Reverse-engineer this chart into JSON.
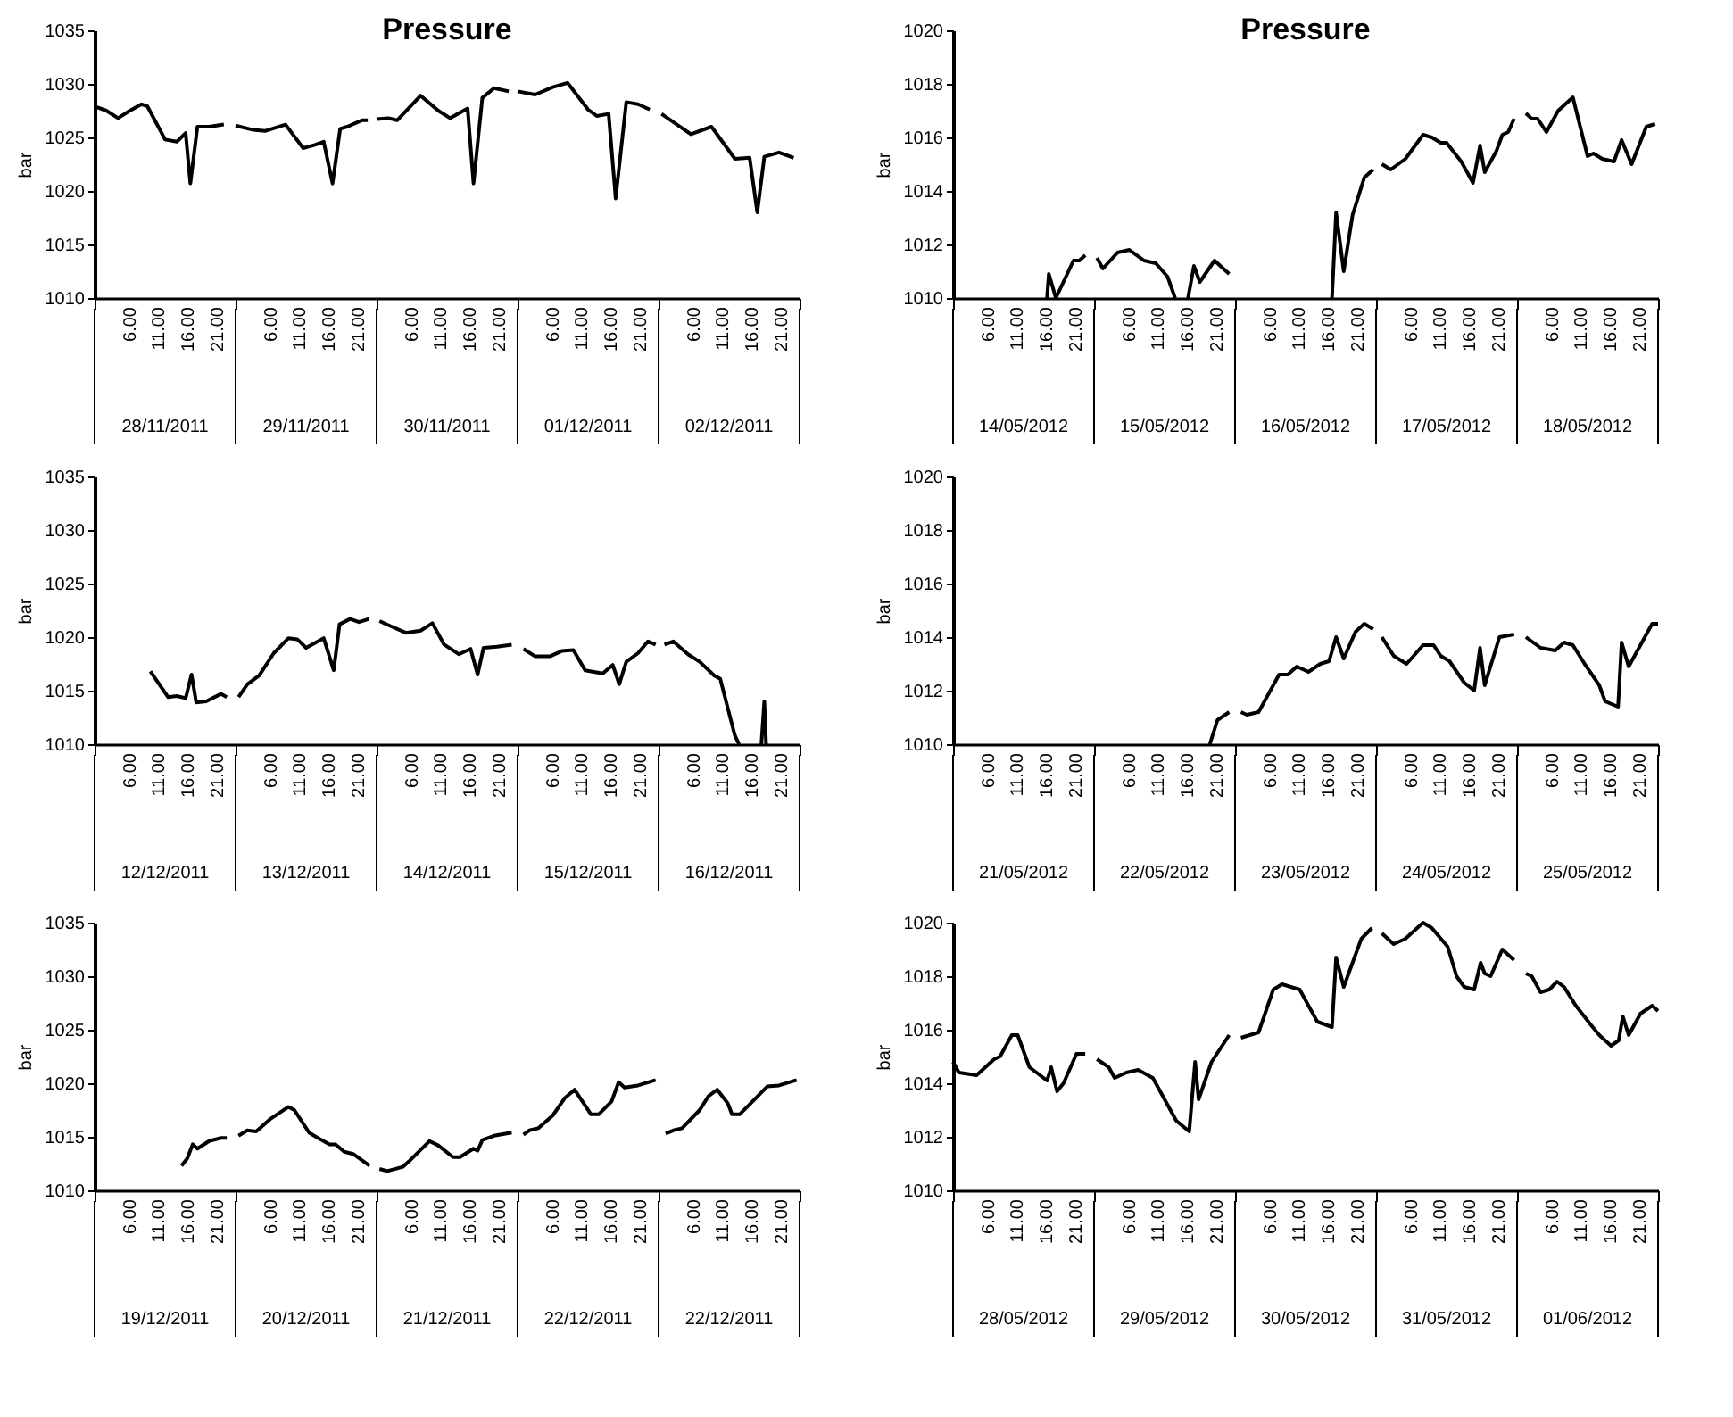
{
  "chart_data": [
    {
      "type": "line",
      "title": "Pressure",
      "ylabel": "bar",
      "annotations": [
        "28/11/2011",
        "29/11/2011",
        "30/11/2011",
        "01/12/2011",
        "02/12/2011"
      ],
      "xlim": [
        "2011-11-28T00:00",
        "2011-12-03T00:00"
      ],
      "ylim": [
        1010,
        1035
      ],
      "yticks": [
        1010,
        1015,
        1020,
        1025,
        1030,
        1035
      ],
      "grid": false,
      "line_style": "solid",
      "marker": "none",
      "xticks": [
        {
          "value": "2011-11-28T00:00",
          "label": null
        },
        {
          "value": "2011-11-28T06:00",
          "label": "6.00"
        },
        {
          "value": "2011-11-28T11:00",
          "label": "11.00"
        },
        {
          "value": "2011-11-28T16:00",
          "label": "16.00"
        },
        {
          "value": "2011-11-28T21:00",
          "label": "21.00"
        },
        {
          "value": "2011-11-29T00:00",
          "label": null
        },
        {
          "value": "2011-11-29T06:00",
          "label": "6.00"
        },
        {
          "value": "2011-11-29T11:00",
          "label": "11.00"
        },
        {
          "value": "2011-11-29T16:00",
          "label": "16.00"
        },
        {
          "value": "2011-11-29T21:00",
          "label": "21.00"
        },
        {
          "value": "2011-11-30T00:00",
          "label": null
        },
        {
          "value": "2011-11-30T06:00",
          "label": "6.00"
        },
        {
          "value": "2011-11-30T11:00",
          "label": "11.00"
        },
        {
          "value": "2011-11-30T16:00",
          "label": "16.00"
        },
        {
          "value": "2011-11-30T21:00",
          "label": "21.00"
        },
        {
          "value": "2011-12-01T00:00",
          "label": null
        },
        {
          "value": "2011-12-01T06:00",
          "label": "6.00"
        },
        {
          "value": "2011-12-01T11:00",
          "label": "11.00"
        },
        {
          "value": "2011-12-01T16:00",
          "label": "16.00"
        },
        {
          "value": "2011-12-01T21:00",
          "label": "21.00"
        },
        {
          "value": "2011-12-02T00:00",
          "label": null
        },
        {
          "value": "2011-12-02T06:00",
          "label": "6.00"
        },
        {
          "value": "2011-12-02T11:00",
          "label": "11.00"
        },
        {
          "value": "2011-12-02T16:00",
          "label": "16.00"
        },
        {
          "value": "2011-12-02T21:00",
          "label": "21.00"
        },
        {
          "value": "2011-12-03T00:00",
          "label": null
        }
      ],
      "series": [
        {
          "color": "#000000",
          "x": [
            "2011-11-28T00:00",
            "2011-11-28T02:00",
            "2011-11-28T04:00",
            "2011-11-28T06:00",
            "2011-11-28T08:00",
            "2011-11-28T09:00",
            "2011-11-28T12:00",
            "2011-11-28T14:00",
            "2011-11-28T15:30",
            "2011-11-28T16:18",
            "2011-11-28T17:30",
            "2011-11-28T19:30",
            "2011-11-28T22:00",
            "2011-11-28T23:00",
            "2011-11-29T00:00",
            "2011-11-29T03:00",
            "2011-11-29T05:00",
            "2011-11-29T08:30",
            "2011-11-29T11:30",
            "2011-11-29T13:30",
            "2011-11-29T15:00",
            "2011-11-29T16:30",
            "2011-11-29T17:48",
            "2011-11-29T19:00",
            "2011-11-29T21:30",
            "2011-11-29T22:30",
            "2011-11-29T23:18",
            "2011-11-30T00:00",
            "2011-11-30T02:00",
            "2011-11-30T03:30",
            "2011-11-30T07:30",
            "2011-11-30T10:30",
            "2011-11-30T12:30",
            "2011-11-30T15:30",
            "2011-11-30T16:30",
            "2011-11-30T18:00",
            "2011-11-30T20:00",
            "2011-11-30T22:30",
            "2011-11-30T23:18",
            "2011-12-01T00:00",
            "2011-12-01T03:00",
            "2011-12-01T06:00",
            "2011-12-01T08:30",
            "2011-12-01T12:00",
            "2011-12-01T13:30",
            "2011-12-01T15:30",
            "2011-12-01T16:42",
            "2011-12-01T18:30",
            "2011-12-01T20:30",
            "2011-12-01T22:30",
            "2011-12-01T23:30",
            "2011-12-02T00:30",
            "2011-12-02T05:30",
            "2011-12-02T09:00",
            "2011-12-02T13:00",
            "2011-12-02T15:30",
            "2011-12-02T16:48",
            "2011-12-02T18:00",
            "2011-12-02T20:30",
            "2011-12-02T23:00"
          ],
          "values": [
            1027.9,
            1027.5,
            1026.8,
            1027.5,
            1028.1,
            1027.9,
            1024.8,
            1024.6,
            1025.4,
            1020.7,
            1026.0,
            1026.0,
            1026.2,
            null,
            1026.1,
            1025.7,
            1025.6,
            1026.2,
            1024.0,
            1024.3,
            1024.6,
            1020.7,
            1025.8,
            1026.0,
            1026.6,
            1026.6,
            null,
            1026.7,
            1026.8,
            1026.6,
            1028.9,
            1027.5,
            1026.8,
            1027.7,
            1020.7,
            1028.7,
            1029.6,
            1029.3,
            null,
            1029.3,
            1029.0,
            1029.7,
            1030.1,
            1027.6,
            1027.0,
            1027.2,
            1019.3,
            1028.3,
            1028.1,
            1027.6,
            null,
            1027.2,
            1025.3,
            1026.0,
            1023.0,
            1023.1,
            1018.0,
            1023.2,
            1023.6,
            1023.1
          ]
        }
      ]
    },
    {
      "type": "line",
      "title": "Pressure",
      "ylabel": "bar",
      "annotations": [
        "14/05/2012",
        "15/05/2012",
        "16/05/2012",
        "17/05/2012",
        "18/05/2012"
      ],
      "xlim": [
        "2012-05-14T00:00",
        "2012-05-19T00:00"
      ],
      "ylim": [
        1010,
        1020
      ],
      "yticks": [
        1010,
        1012,
        1014,
        1016,
        1018,
        1020
      ],
      "grid": false,
      "line_style": "solid",
      "marker": "none",
      "xticks": [
        {
          "value": "2012-05-14T00:00",
          "label": null
        },
        {
          "value": "2012-05-14T06:00",
          "label": "6.00"
        },
        {
          "value": "2012-05-14T11:00",
          "label": "11.00"
        },
        {
          "value": "2012-05-14T16:00",
          "label": "16.00"
        },
        {
          "value": "2012-05-14T21:00",
          "label": "21.00"
        },
        {
          "value": "2012-05-15T00:00",
          "label": null
        },
        {
          "value": "2012-05-15T06:00",
          "label": "6.00"
        },
        {
          "value": "2012-05-15T11:00",
          "label": "11.00"
        },
        {
          "value": "2012-05-15T16:00",
          "label": "16.00"
        },
        {
          "value": "2012-05-15T21:00",
          "label": "21.00"
        },
        {
          "value": "2012-05-16T00:00",
          "label": null
        },
        {
          "value": "2012-05-16T06:00",
          "label": "6.00"
        },
        {
          "value": "2012-05-16T11:00",
          "label": "11.00"
        },
        {
          "value": "2012-05-16T16:00",
          "label": "16.00"
        },
        {
          "value": "2012-05-16T21:00",
          "label": "21.00"
        },
        {
          "value": "2012-05-17T00:00",
          "label": null
        },
        {
          "value": "2012-05-17T06:00",
          "label": "6.00"
        },
        {
          "value": "2012-05-17T11:00",
          "label": "11.00"
        },
        {
          "value": "2012-05-17T16:00",
          "label": "16.00"
        },
        {
          "value": "2012-05-17T21:00",
          "label": "21.00"
        },
        {
          "value": "2012-05-18T00:00",
          "label": null
        },
        {
          "value": "2012-05-18T06:00",
          "label": "6.00"
        },
        {
          "value": "2012-05-18T11:00",
          "label": "11.00"
        },
        {
          "value": "2012-05-18T16:00",
          "label": "16.00"
        },
        {
          "value": "2012-05-18T21:00",
          "label": "21.00"
        },
        {
          "value": "2012-05-19T00:00",
          "label": null
        }
      ],
      "series": [
        {
          "color": "#000000",
          "x": [
            "2012-05-14T16:00",
            "2012-05-14T16:18",
            "2012-05-14T17:30",
            "2012-05-14T19:00",
            "2012-05-14T20:30",
            "2012-05-14T21:30",
            "2012-05-14T22:30",
            "2012-05-14T23:30",
            "2012-05-15T00:30",
            "2012-05-15T01:30",
            "2012-05-15T04:00",
            "2012-05-15T06:00",
            "2012-05-15T08:30",
            "2012-05-15T10:30",
            "2012-05-15T12:30",
            "2012-05-15T13:48",
            "2012-05-15T14:54",
            "2012-05-15T16:00",
            "2012-05-15T17:00",
            "2012-05-15T18:00",
            "2012-05-15T20:30",
            "2012-05-15T23:00",
            "2012-05-16T00:00",
            "2012-05-16T16:30",
            "2012-05-16T17:12",
            "2012-05-16T18:30",
            "2012-05-16T20:00",
            "2012-05-16T22:00",
            "2012-05-16T23:30",
            "2012-05-17T00:12",
            "2012-05-17T01:00",
            "2012-05-17T02:30",
            "2012-05-17T05:00",
            "2012-05-17T08:00",
            "2012-05-17T09:30",
            "2012-05-17T11:00",
            "2012-05-17T12:00",
            "2012-05-17T14:30",
            "2012-05-17T16:30",
            "2012-05-17T17:42",
            "2012-05-17T18:30",
            "2012-05-17T20:30",
            "2012-05-17T21:30",
            "2012-05-17T22:30",
            "2012-05-17T23:30",
            "2012-05-18T00:30",
            "2012-05-18T01:30",
            "2012-05-18T02:30",
            "2012-05-18T03:30",
            "2012-05-18T05:00",
            "2012-05-18T07:00",
            "2012-05-18T09:30",
            "2012-05-18T12:00",
            "2012-05-18T13:00",
            "2012-05-18T14:30",
            "2012-05-18T16:30",
            "2012-05-18T17:48",
            "2012-05-18T19:30",
            "2012-05-18T22:00",
            "2012-05-18T23:30"
          ],
          "values": [
            1010,
            1010.9,
            1010,
            1010.7,
            1011.4,
            1011.4,
            1011.6,
            null,
            1011.5,
            1011.1,
            1011.7,
            1011.8,
            1011.4,
            1011.3,
            1010.8,
            1010,
            null,
            1010,
            1011.2,
            1010.6,
            1011.4,
            1010.9,
            null,
            1010,
            1013.2,
            1011.0,
            1013.1,
            1014.5,
            1014.8,
            null,
            1015.0,
            1014.8,
            1015.2,
            1016.1,
            1016.0,
            1015.8,
            1015.8,
            1015.1,
            1014.3,
            1015.7,
            1014.7,
            1015.5,
            1016.1,
            1016.2,
            1016.7,
            null,
            1016.9,
            1016.7,
            1016.7,
            1016.2,
            1017.0,
            1017.5,
            1015.3,
            1015.4,
            1015.2,
            1015.1,
            1015.9,
            1015.0,
            1016.4,
            1016.5
          ]
        }
      ]
    },
    {
      "type": "line",
      "ylabel": "bar",
      "annotations": [
        "12/12/2011",
        "13/12/2011",
        "14/12/2011",
        "15/12/2011",
        "16/12/2011"
      ],
      "xlim": [
        "2011-12-12T00:00",
        "2011-12-17T00:00"
      ],
      "ylim": [
        1010,
        1035
      ],
      "yticks": [
        1010,
        1015,
        1020,
        1025,
        1030,
        1035
      ],
      "grid": false,
      "line_style": "solid",
      "marker": "none",
      "xticks": [
        {
          "value": "2011-12-12T00:00",
          "label": null
        },
        {
          "value": "2011-12-12T06:00",
          "label": "6.00"
        },
        {
          "value": "2011-12-12T11:00",
          "label": "11.00"
        },
        {
          "value": "2011-12-12T16:00",
          "label": "16.00"
        },
        {
          "value": "2011-12-12T21:00",
          "label": "21.00"
        },
        {
          "value": "2011-12-13T00:00",
          "label": null
        },
        {
          "value": "2011-12-13T06:00",
          "label": "6.00"
        },
        {
          "value": "2011-12-13T11:00",
          "label": "11.00"
        },
        {
          "value": "2011-12-13T16:00",
          "label": "16.00"
        },
        {
          "value": "2011-12-13T21:00",
          "label": "21.00"
        },
        {
          "value": "2011-12-14T00:00",
          "label": null
        },
        {
          "value": "2011-12-14T06:00",
          "label": "6.00"
        },
        {
          "value": "2011-12-14T11:00",
          "label": "11.00"
        },
        {
          "value": "2011-12-14T16:00",
          "label": "16.00"
        },
        {
          "value": "2011-12-14T21:00",
          "label": "21.00"
        },
        {
          "value": "2011-12-15T00:00",
          "label": null
        },
        {
          "value": "2011-12-15T06:00",
          "label": "6.00"
        },
        {
          "value": "2011-12-15T11:00",
          "label": "11.00"
        },
        {
          "value": "2011-12-15T16:00",
          "label": "16.00"
        },
        {
          "value": "2011-12-15T21:00",
          "label": "21.00"
        },
        {
          "value": "2011-12-16T00:00",
          "label": null
        },
        {
          "value": "2011-12-16T06:00",
          "label": "6.00"
        },
        {
          "value": "2011-12-16T11:00",
          "label": "11.00"
        },
        {
          "value": "2011-12-16T16:00",
          "label": "16.00"
        },
        {
          "value": "2011-12-16T21:00",
          "label": "21.00"
        },
        {
          "value": "2011-12-17T00:00",
          "label": null
        }
      ],
      "series": [
        {
          "color": "#000000",
          "x": [
            "2011-12-12T09:30",
            "2011-12-12T12:30",
            "2011-12-12T14:00",
            "2011-12-12T15:30",
            "2011-12-12T16:30",
            "2011-12-12T17:18",
            "2011-12-12T19:00",
            "2011-12-12T21:30",
            "2011-12-12T22:30",
            "2011-12-12T23:30",
            "2011-12-13T00:30",
            "2011-12-13T02:00",
            "2011-12-13T04:00",
            "2011-12-13T06:30",
            "2011-12-13T09:00",
            "2011-12-13T10:30",
            "2011-12-13T12:00",
            "2011-12-13T15:00",
            "2011-12-13T16:42",
            "2011-12-13T17:42",
            "2011-12-13T19:30",
            "2011-12-13T21:00",
            "2011-12-13T22:42",
            "2011-12-13T23:36",
            "2011-12-14T00:30",
            "2011-12-14T02:30",
            "2011-12-14T05:00",
            "2011-12-14T07:30",
            "2011-12-14T09:30",
            "2011-12-14T11:30",
            "2011-12-14T14:00",
            "2011-12-14T16:00",
            "2011-12-14T17:12",
            "2011-12-14T18:12",
            "2011-12-14T20:30",
            "2011-12-14T23:00",
            "2011-12-15T00:00",
            "2011-12-15T01:00",
            "2011-12-15T03:00",
            "2011-12-15T05:30",
            "2011-12-15T07:30",
            "2011-12-15T09:30",
            "2011-12-15T11:30",
            "2011-12-15T14:30",
            "2011-12-15T16:12",
            "2011-12-15T17:18",
            "2011-12-15T18:30",
            "2011-12-15T20:30",
            "2011-12-15T22:12",
            "2011-12-15T23:30",
            "2011-12-16T00:12",
            "2011-12-16T01:00",
            "2011-12-16T02:30",
            "2011-12-16T05:00",
            "2011-12-16T07:00",
            "2011-12-16T09:30",
            "2011-12-16T10:30",
            "2011-12-16T12:00",
            "2011-12-16T13:00",
            "2011-12-16T13:42",
            "2011-12-16T15:30",
            "2011-12-16T17:30",
            "2011-12-16T18:00",
            "2011-12-16T18:18"
          ],
          "values": [
            1016.8,
            1014.4,
            1014.5,
            1014.3,
            1016.5,
            1013.9,
            1014.0,
            1014.7,
            1014.4,
            null,
            1014.4,
            1015.6,
            1016.4,
            1018.5,
            1019.9,
            1019.8,
            1019.0,
            1019.9,
            1016.9,
            1021.2,
            1021.7,
            1021.4,
            1021.7,
            null,
            1021.5,
            1021.0,
            1020.4,
            1020.6,
            1021.3,
            1019.3,
            1018.4,
            1018.9,
            1016.5,
            1019.0,
            1019.1,
            1019.3,
            null,
            1018.9,
            1018.2,
            1018.2,
            1018.7,
            1018.8,
            1016.9,
            1016.6,
            1017.4,
            1015.6,
            1017.7,
            1018.5,
            1019.6,
            1019.3,
            null,
            1019.3,
            1019.6,
            1018.4,
            1017.7,
            1016.4,
            1016.1,
            1012.9,
            1010.8,
            1010,
            null,
            1010,
            1014.0,
            1010
          ]
        }
      ]
    },
    {
      "type": "line",
      "ylabel": "bar",
      "annotations": [
        "21/05/2012",
        "22/05/2012",
        "23/05/2012",
        "24/05/2012",
        "25/05/2012"
      ],
      "xlim": [
        "2012-05-21T00:00",
        "2012-05-26T00:00"
      ],
      "ylim": [
        1010,
        1020
      ],
      "yticks": [
        1010,
        1012,
        1014,
        1016,
        1018,
        1020
      ],
      "grid": false,
      "line_style": "solid",
      "marker": "none",
      "xticks": [
        {
          "value": "2012-05-21T00:00",
          "label": null
        },
        {
          "value": "2012-05-21T06:00",
          "label": "6.00"
        },
        {
          "value": "2012-05-21T11:00",
          "label": "11.00"
        },
        {
          "value": "2012-05-21T16:00",
          "label": "16.00"
        },
        {
          "value": "2012-05-21T21:00",
          "label": "21.00"
        },
        {
          "value": "2012-05-22T00:00",
          "label": null
        },
        {
          "value": "2012-05-22T06:00",
          "label": "6.00"
        },
        {
          "value": "2012-05-22T11:00",
          "label": "11.00"
        },
        {
          "value": "2012-05-22T16:00",
          "label": "16.00"
        },
        {
          "value": "2012-05-22T21:00",
          "label": "21.00"
        },
        {
          "value": "2012-05-23T00:00",
          "label": null
        },
        {
          "value": "2012-05-23T06:00",
          "label": "6.00"
        },
        {
          "value": "2012-05-23T11:00",
          "label": "11.00"
        },
        {
          "value": "2012-05-23T16:00",
          "label": "16.00"
        },
        {
          "value": "2012-05-23T21:00",
          "label": "21.00"
        },
        {
          "value": "2012-05-24T00:00",
          "label": null
        },
        {
          "value": "2012-05-24T06:00",
          "label": "6.00"
        },
        {
          "value": "2012-05-24T11:00",
          "label": "11.00"
        },
        {
          "value": "2012-05-24T16:00",
          "label": "16.00"
        },
        {
          "value": "2012-05-24T21:00",
          "label": "21.00"
        },
        {
          "value": "2012-05-25T00:00",
          "label": null
        },
        {
          "value": "2012-05-25T06:00",
          "label": "6.00"
        },
        {
          "value": "2012-05-25T11:00",
          "label": "11.00"
        },
        {
          "value": "2012-05-25T16:00",
          "label": "16.00"
        },
        {
          "value": "2012-05-25T21:00",
          "label": "21.00"
        },
        {
          "value": "2012-05-26T00:00",
          "label": null
        }
      ],
      "series": [
        {
          "color": "#000000",
          "x": [
            "2012-05-22T19:42",
            "2012-05-22T21:00",
            "2012-05-22T23:00",
            "2012-05-23T00:00",
            "2012-05-23T01:00",
            "2012-05-23T02:00",
            "2012-05-23T04:00",
            "2012-05-23T06:00",
            "2012-05-23T07:30",
            "2012-05-23T09:00",
            "2012-05-23T10:30",
            "2012-05-23T12:30",
            "2012-05-23T14:30",
            "2012-05-23T16:00",
            "2012-05-23T17:12",
            "2012-05-23T18:30",
            "2012-05-23T20:30",
            "2012-05-23T22:00",
            "2012-05-23T23:30",
            "2012-05-24T00:12",
            "2012-05-24T01:00",
            "2012-05-24T03:00",
            "2012-05-24T05:12",
            "2012-05-24T08:00",
            "2012-05-24T09:48",
            "2012-05-24T11:00",
            "2012-05-24T12:30",
            "2012-05-24T15:00",
            "2012-05-24T16:42",
            "2012-05-24T17:42",
            "2012-05-24T18:30",
            "2012-05-24T21:00",
            "2012-05-24T23:30",
            "2012-05-25T00:30",
            "2012-05-25T01:30",
            "2012-05-25T04:00",
            "2012-05-25T06:30",
            "2012-05-25T08:00",
            "2012-05-25T09:30",
            "2012-05-25T11:30",
            "2012-05-25T14:00",
            "2012-05-25T15:00",
            "2012-05-25T17:12",
            "2012-05-25T17:48",
            "2012-05-25T19:00",
            "2012-05-25T21:00",
            "2012-05-25T23:00",
            "2012-05-26T00:00"
          ],
          "values": [
            1010,
            1010.9,
            1011.2,
            null,
            1011.2,
            1011.1,
            1011.2,
            1012.0,
            1012.6,
            1012.6,
            1012.9,
            1012.7,
            1013.0,
            1013.1,
            1014.0,
            1013.2,
            1014.2,
            1014.5,
            1014.3,
            null,
            1014.0,
            1013.3,
            1013.0,
            1013.7,
            1013.7,
            1013.3,
            1013.1,
            1012.3,
            1012.0,
            1013.6,
            1012.2,
            1014.0,
            1014.1,
            null,
            1014.0,
            1013.6,
            1013.5,
            1013.8,
            1013.7,
            1013.0,
            1012.2,
            1011.6,
            1011.4,
            1013.8,
            1012.9,
            1013.7,
            1014.5,
            1014.5
          ]
        }
      ]
    },
    {
      "type": "line",
      "ylabel": "bar",
      "annotations": [
        "19/12/2011",
        "20/12/2011",
        "21/12/2011",
        "22/12/2011",
        "22/12/2011"
      ],
      "xlim": [
        "2011-12-19T00:00",
        "2011-12-24T00:00"
      ],
      "ylim": [
        1010,
        1035
      ],
      "yticks": [
        1010,
        1015,
        1020,
        1025,
        1030,
        1035
      ],
      "grid": false,
      "line_style": "solid",
      "marker": "none",
      "xticks": [
        {
          "value": "2011-12-19T00:00",
          "label": null
        },
        {
          "value": "2011-12-19T06:00",
          "label": "6.00"
        },
        {
          "value": "2011-12-19T11:00",
          "label": "11.00"
        },
        {
          "value": "2011-12-19T16:00",
          "label": "16.00"
        },
        {
          "value": "2011-12-19T21:00",
          "label": "21.00"
        },
        {
          "value": "2011-12-20T00:00",
          "label": null
        },
        {
          "value": "2011-12-20T06:00",
          "label": "6.00"
        },
        {
          "value": "2011-12-20T11:00",
          "label": "11.00"
        },
        {
          "value": "2011-12-20T16:00",
          "label": "16.00"
        },
        {
          "value": "2011-12-20T21:00",
          "label": "21.00"
        },
        {
          "value": "2011-12-21T00:00",
          "label": null
        },
        {
          "value": "2011-12-21T06:00",
          "label": "6.00"
        },
        {
          "value": "2011-12-21T11:00",
          "label": "11.00"
        },
        {
          "value": "2011-12-21T16:00",
          "label": "16.00"
        },
        {
          "value": "2011-12-21T21:00",
          "label": "21.00"
        },
        {
          "value": "2011-12-22T00:00",
          "label": null
        },
        {
          "value": "2011-12-22T06:00",
          "label": "6.00"
        },
        {
          "value": "2011-12-22T11:00",
          "label": "11.00"
        },
        {
          "value": "2011-12-22T16:00",
          "label": "16.00"
        },
        {
          "value": "2011-12-22T21:00",
          "label": "21.00"
        },
        {
          "value": "2011-12-23T00:00",
          "label": null
        },
        {
          "value": "2011-12-23T06:00",
          "label": "6.00"
        },
        {
          "value": "2011-12-23T11:00",
          "label": "11.00"
        },
        {
          "value": "2011-12-23T16:00",
          "label": "16.00"
        },
        {
          "value": "2011-12-23T21:00",
          "label": "21.00"
        },
        {
          "value": "2011-12-24T00:00",
          "label": null
        }
      ],
      "series": [
        {
          "color": "#000000",
          "x": [
            "2011-12-19T14:48",
            "2011-12-19T15:48",
            "2011-12-19T16:42",
            "2011-12-19T17:30",
            "2011-12-19T19:30",
            "2011-12-19T21:30",
            "2011-12-19T22:30",
            "2011-12-19T23:30",
            "2011-12-20T00:30",
            "2011-12-20T02:00",
            "2011-12-20T03:30",
            "2011-12-20T06:00",
            "2011-12-20T09:00",
            "2011-12-20T10:00",
            "2011-12-20T12:30",
            "2011-12-20T14:00",
            "2011-12-20T16:00",
            "2011-12-20T17:00",
            "2011-12-20T18:30",
            "2011-12-20T20:00",
            "2011-12-20T22:48",
            "2011-12-20T23:36",
            "2011-12-21T00:30",
            "2011-12-21T01:48",
            "2011-12-21T04:30",
            "2011-12-21T05:30",
            "2011-12-21T09:00",
            "2011-12-21T10:30",
            "2011-12-21T13:00",
            "2011-12-21T14:12",
            "2011-12-21T16:30",
            "2011-12-21T17:12",
            "2011-12-21T18:00",
            "2011-12-21T20:00",
            "2011-12-21T23:00",
            "2011-12-22T00:00",
            "2011-12-22T01:00",
            "2011-12-22T02:00",
            "2011-12-22T03:30",
            "2011-12-22T06:00",
            "2011-12-22T08:00",
            "2011-12-22T09:42",
            "2011-12-22T12:30",
            "2011-12-22T13:48",
            "2011-12-22T16:00",
            "2011-12-22T17:12",
            "2011-12-22T18:12",
            "2011-12-22T20:30",
            "2011-12-22T23:30",
            "2011-12-23T00:24",
            "2011-12-23T01:12",
            "2011-12-23T02:30",
            "2011-12-23T04:00",
            "2011-12-23T07:00",
            "2011-12-23T08:30",
            "2011-12-23T10:00",
            "2011-12-23T11:48",
            "2011-12-23T12:30",
            "2011-12-23T13:48",
            "2011-12-23T16:00",
            "2011-12-23T18:30",
            "2011-12-23T20:30",
            "2011-12-23T23:30"
          ],
          "values": [
            1012.3,
            1013.0,
            1014.3,
            1013.9,
            1014.6,
            1014.9,
            1014.9,
            null,
            1015.1,
            1015.6,
            1015.5,
            1016.7,
            1017.8,
            1017.5,
            1015.4,
            1014.9,
            1014.3,
            1014.3,
            1013.6,
            1013.4,
            1012.3,
            null,
            1012.0,
            1011.8,
            1012.2,
            1012.7,
            1014.6,
            1014.2,
            1013.1,
            1013.1,
            1013.9,
            1013.7,
            1014.7,
            1015.1,
            1015.4,
            null,
            1015.2,
            1015.6,
            1015.8,
            1017.0,
            1018.6,
            1019.4,
            1017.1,
            1017.1,
            1018.3,
            1020.1,
            1019.6,
            1019.8,
            1020.3,
            null,
            1015.3,
            1015.6,
            1015.8,
            1017.5,
            1018.8,
            1019.4,
            1018.1,
            1017.1,
            1017.1,
            1018.3,
            1019.7,
            1019.8,
            1020.3
          ]
        }
      ]
    },
    {
      "type": "line",
      "ylabel": "bar",
      "annotations": [
        "28/05/2012",
        "29/05/2012",
        "30/05/2012",
        "31/05/2012",
        "01/06/2012"
      ],
      "xlim": [
        "2012-05-28T00:00",
        "2012-06-02T00:00"
      ],
      "ylim": [
        1010,
        1020
      ],
      "yticks": [
        1010,
        1012,
        1014,
        1016,
        1018,
        1020
      ],
      "grid": false,
      "line_style": "solid",
      "marker": "none",
      "xticks": [
        {
          "value": "2012-05-28T00:00",
          "label": null
        },
        {
          "value": "2012-05-28T06:00",
          "label": "6.00"
        },
        {
          "value": "2012-05-28T11:00",
          "label": "11.00"
        },
        {
          "value": "2012-05-28T16:00",
          "label": "16.00"
        },
        {
          "value": "2012-05-28T21:00",
          "label": "21.00"
        },
        {
          "value": "2012-05-29T00:00",
          "label": null
        },
        {
          "value": "2012-05-29T06:00",
          "label": "6.00"
        },
        {
          "value": "2012-05-29T11:00",
          "label": "11.00"
        },
        {
          "value": "2012-05-29T16:00",
          "label": "16.00"
        },
        {
          "value": "2012-05-29T21:00",
          "label": "21.00"
        },
        {
          "value": "2012-05-30T00:00",
          "label": null
        },
        {
          "value": "2012-05-30T06:00",
          "label": "6.00"
        },
        {
          "value": "2012-05-30T11:00",
          "label": "11.00"
        },
        {
          "value": "2012-05-30T16:00",
          "label": "16.00"
        },
        {
          "value": "2012-05-30T21:00",
          "label": "21.00"
        },
        {
          "value": "2012-05-31T00:00",
          "label": null
        },
        {
          "value": "2012-05-31T06:00",
          "label": "6.00"
        },
        {
          "value": "2012-05-31T11:00",
          "label": "11.00"
        },
        {
          "value": "2012-05-31T16:00",
          "label": "16.00"
        },
        {
          "value": "2012-05-31T21:00",
          "label": "21.00"
        },
        {
          "value": "2012-06-01T00:00",
          "label": null
        },
        {
          "value": "2012-06-01T06:00",
          "label": "6.00"
        },
        {
          "value": "2012-06-01T11:00",
          "label": "11.00"
        },
        {
          "value": "2012-06-01T16:00",
          "label": "16.00"
        },
        {
          "value": "2012-06-01T21:00",
          "label": "21.00"
        },
        {
          "value": "2012-06-02T00:00",
          "label": null
        }
      ],
      "series": [
        {
          "color": "#000000",
          "x": [
            "2012-05-28T00:00",
            "2012-05-28T01:00",
            "2012-05-28T04:00",
            "2012-05-28T05:30",
            "2012-05-28T07:00",
            "2012-05-28T08:00",
            "2012-05-28T10:00",
            "2012-05-28T11:00",
            "2012-05-28T13:00",
            "2012-05-28T16:00",
            "2012-05-28T16:42",
            "2012-05-28T17:42",
            "2012-05-28T18:48",
            "2012-05-28T21:00",
            "2012-05-28T22:30",
            "2012-05-28T23:30",
            "2012-05-29T00:30",
            "2012-05-29T02:30",
            "2012-05-29T03:30",
            "2012-05-29T05:30",
            "2012-05-29T07:30",
            "2012-05-29T10:00",
            "2012-05-29T12:00",
            "2012-05-29T14:00",
            "2012-05-29T16:12",
            "2012-05-29T17:12",
            "2012-05-29T17:48",
            "2012-05-29T20:00",
            "2012-05-29T23:00",
            "2012-05-30T00:00",
            "2012-05-30T01:00",
            "2012-05-30T04:00",
            "2012-05-30T06:30",
            "2012-05-30T08:00",
            "2012-05-30T11:00",
            "2012-05-30T14:00",
            "2012-05-30T16:30",
            "2012-05-30T17:12",
            "2012-05-30T18:30",
            "2012-05-30T21:30",
            "2012-05-30T23:18",
            "2012-05-31T00:12",
            "2012-05-31T01:00",
            "2012-05-31T03:00",
            "2012-05-31T05:00",
            "2012-05-31T08:00",
            "2012-05-31T09:30",
            "2012-05-31T12:12",
            "2012-05-31T13:42",
            "2012-05-31T15:00",
            "2012-05-31T16:42",
            "2012-05-31T17:48",
            "2012-05-31T18:30",
            "2012-05-31T19:30",
            "2012-05-31T21:30",
            "2012-05-31T23:30",
            "2012-06-01T00:30",
            "2012-06-01T01:30",
            "2012-06-01T02:30",
            "2012-06-01T04:00",
            "2012-06-01T05:30",
            "2012-06-01T06:48",
            "2012-06-01T08:00",
            "2012-06-01T10:00",
            "2012-06-01T12:30",
            "2012-06-01T14:00",
            "2012-06-01T16:00",
            "2012-06-01T17:18",
            "2012-06-01T18:00",
            "2012-06-01T19:00",
            "2012-06-01T21:00",
            "2012-06-01T23:00",
            "2012-06-02T00:00"
          ],
          "values": [
            1014.8,
            1014.4,
            1014.3,
            1014.6,
            1014.9,
            1015.0,
            1015.8,
            1015.8,
            1014.6,
            1014.1,
            1014.6,
            1013.7,
            1014.0,
            1015.1,
            1015.1,
            null,
            1014.9,
            1014.6,
            1014.2,
            1014.4,
            1014.5,
            1014.2,
            1013.4,
            1012.6,
            1012.2,
            1014.8,
            1013.4,
            1014.8,
            1015.8,
            null,
            1015.7,
            1015.9,
            1017.5,
            1017.7,
            1017.5,
            1016.3,
            1016.1,
            1018.7,
            1017.6,
            1019.4,
            1019.8,
            null,
            1019.6,
            1019.2,
            1019.4,
            1020.0,
            1019.8,
            1019.1,
            1018.0,
            1017.6,
            1017.5,
            1018.5,
            1018.1,
            1018.0,
            1019.0,
            1018.6,
            null,
            1018.1,
            1018.0,
            1017.4,
            1017.5,
            1017.8,
            1017.6,
            1016.9,
            1016.2,
            1015.8,
            1015.4,
            1015.6,
            1016.5,
            1015.8,
            1016.6,
            1016.9,
            1016.7
          ]
        }
      ]
    }
  ]
}
